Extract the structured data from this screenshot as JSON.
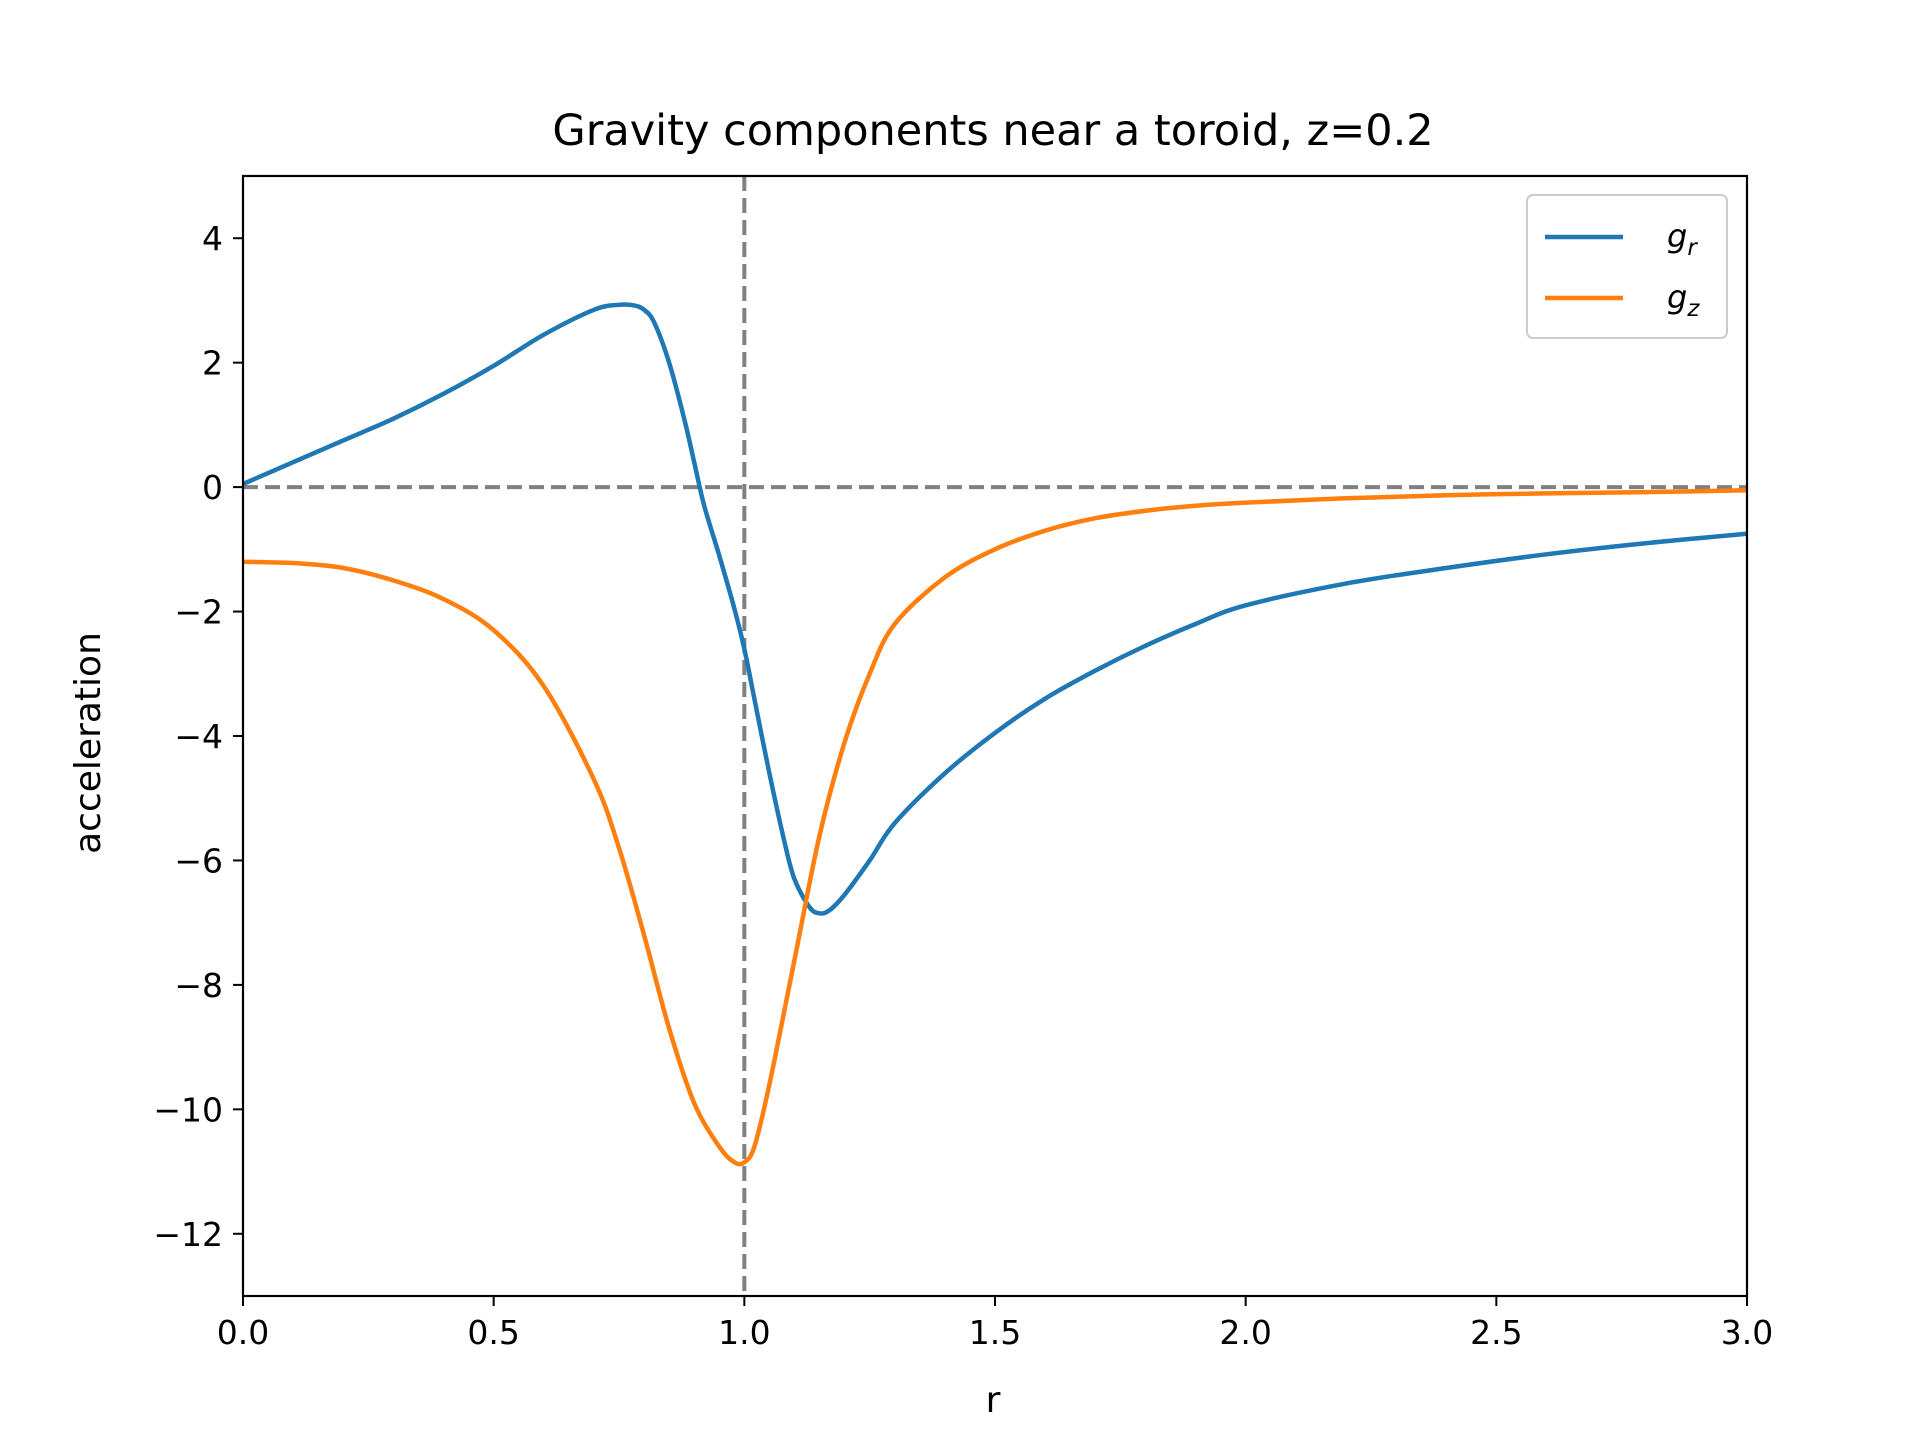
{
  "chart_data": {
    "type": "line",
    "title": "Gravity components near a toroid, z=0.2",
    "xlabel": "r",
    "ylabel": "acceleration",
    "xlim": [
      0,
      3
    ],
    "ylim": [
      -13,
      5
    ],
    "x_ticks": [
      0,
      0.5,
      1,
      1.5,
      2,
      2.5,
      3
    ],
    "x_tick_labels": [
      "0.0",
      "0.5",
      "1.0",
      "1.5",
      "2.0",
      "2.5",
      "3.0"
    ],
    "y_ticks": [
      4,
      2,
      0,
      -2,
      -4,
      -6,
      -8,
      -10,
      -12
    ],
    "y_tick_labels": [
      "4",
      "2",
      "0",
      "−2",
      "−4",
      "−6",
      "−8",
      "−10",
      "−12"
    ],
    "grid": false,
    "legend_position": "top-right",
    "reference_lines": [
      {
        "orientation": "horizontal",
        "value": 0,
        "style": "dashed",
        "color": "#808080"
      },
      {
        "orientation": "vertical",
        "value": 1.0,
        "style": "dashed",
        "color": "#808080"
      }
    ],
    "series": [
      {
        "name": "g_r",
        "label_base": "g",
        "label_sub": "r",
        "color": "#1f77b4",
        "x": [
          0,
          0.1,
          0.2,
          0.3,
          0.4,
          0.5,
          0.6,
          0.7,
          0.75,
          0.78,
          0.8,
          0.82,
          0.85,
          0.88,
          0.9,
          0.92,
          0.95,
          0.98,
          1.0,
          1.02,
          1.05,
          1.08,
          1.1,
          1.13,
          1.15,
          1.17,
          1.2,
          1.25,
          1.3,
          1.4,
          1.5,
          1.6,
          1.7,
          1.8,
          1.9,
          2.0,
          2.2,
          2.4,
          2.6,
          2.8,
          3.0
        ],
        "y": [
          0.05,
          0.4,
          0.75,
          1.1,
          1.5,
          1.95,
          2.45,
          2.85,
          2.93,
          2.92,
          2.85,
          2.65,
          2.0,
          1.1,
          0.4,
          -0.3,
          -1.1,
          -1.95,
          -2.6,
          -3.4,
          -4.6,
          -5.7,
          -6.3,
          -6.75,
          -6.85,
          -6.8,
          -6.55,
          -6.0,
          -5.4,
          -4.6,
          -3.95,
          -3.4,
          -2.95,
          -2.55,
          -2.2,
          -1.9,
          -1.55,
          -1.3,
          -1.08,
          -0.9,
          -0.75
        ]
      },
      {
        "name": "g_z",
        "label_base": "g",
        "label_sub": "z",
        "color": "#ff7f0e",
        "x": [
          0,
          0.1,
          0.2,
          0.3,
          0.4,
          0.5,
          0.6,
          0.7,
          0.75,
          0.8,
          0.85,
          0.9,
          0.95,
          0.98,
          1.0,
          1.02,
          1.05,
          1.1,
          1.15,
          1.2,
          1.25,
          1.3,
          1.4,
          1.5,
          1.6,
          1.7,
          1.8,
          1.9,
          2.0,
          2.2,
          2.4,
          2.6,
          2.8,
          3.0
        ],
        "y": [
          -1.2,
          -1.22,
          -1.3,
          -1.5,
          -1.8,
          -2.3,
          -3.2,
          -4.7,
          -5.8,
          -7.2,
          -8.7,
          -9.9,
          -10.6,
          -10.85,
          -10.85,
          -10.6,
          -9.6,
          -7.6,
          -5.6,
          -4.1,
          -3.0,
          -2.2,
          -1.45,
          -1.0,
          -0.7,
          -0.5,
          -0.38,
          -0.3,
          -0.25,
          -0.18,
          -0.13,
          -0.1,
          -0.08,
          -0.05
        ]
      }
    ]
  }
}
